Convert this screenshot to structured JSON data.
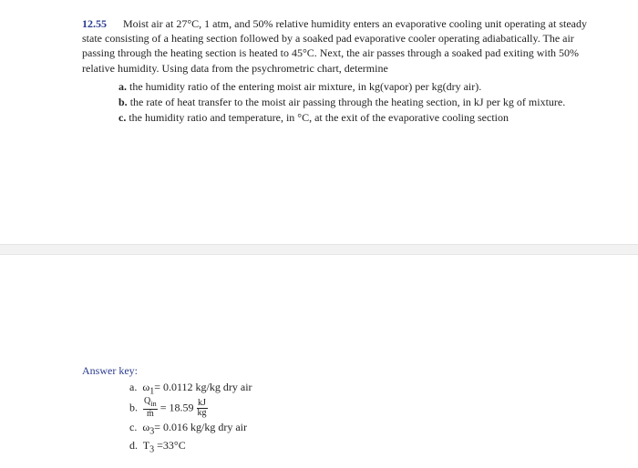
{
  "problem": {
    "number": "12.55",
    "intro": "Moist air at 27°C, 1 atm, and 50% relative humidity enters an evaporative cooling unit operating at steady state consisting of a heating section followed by a soaked pad evaporative cooler operating adiabatically. The air passing through the heating section is heated to 45°C. Next, the air passes through a soaked pad exiting with 50% relative humidity. Using data from the psychrometric chart, determine",
    "parts": {
      "a": {
        "label": "a.",
        "text": "the humidity ratio of the entering moist air mixture, in kg(vapor) per kg(dry air)."
      },
      "b": {
        "label": "b.",
        "text": "the rate of heat transfer to the moist air passing through the heating section, in kJ per kg of mixture."
      },
      "c": {
        "label": "c.",
        "text": "the humidity ratio and temperature, in °C, at the exit of the evaporative cooling section"
      }
    }
  },
  "answers": {
    "title": "Answer key:",
    "a": {
      "label": "a.",
      "var": "ω",
      "sub": "1",
      "value": "= 0.0112 kg/kg dry air"
    },
    "b": {
      "label": "b.",
      "num": "Q",
      "numsub": "in",
      "den": "ṁ",
      "value": "= 18.59",
      "unit_num": "kJ",
      "unit_den": "kg"
    },
    "c": {
      "label": "c.",
      "var": "ω",
      "sub": "3",
      "value": "= 0.016 kg/kg dry air"
    },
    "d": {
      "label": "d.",
      "var": "T",
      "sub": "3",
      "value": " =33°C"
    }
  }
}
